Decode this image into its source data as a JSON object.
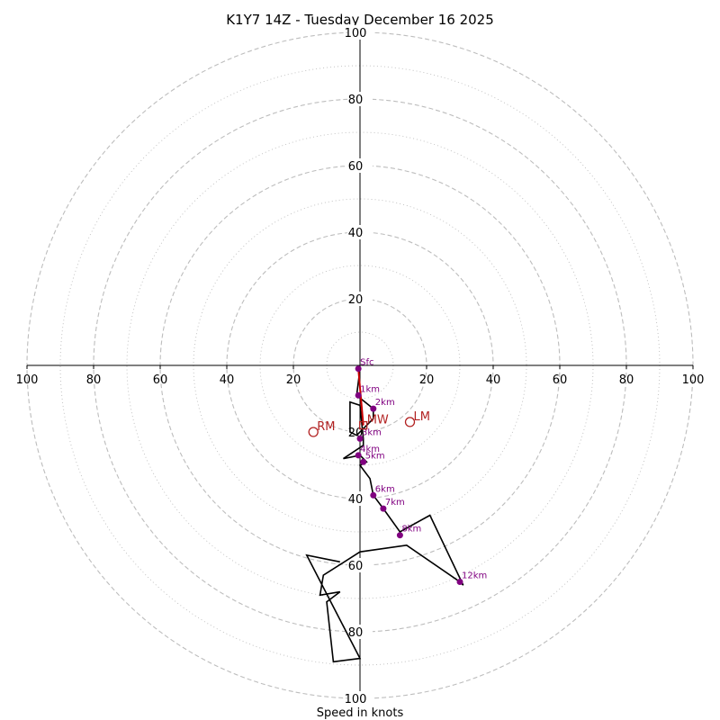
{
  "chart_data": {
    "type": "hodograph",
    "title": "K1Y7 14Z - Tuesday December 16 2025",
    "xlabel": "Speed in knots",
    "max_speed": 100,
    "ring_labels": [
      "20",
      "40",
      "60",
      "80",
      "100"
    ],
    "h_tick_labels": [
      "100",
      "80",
      "60",
      "40",
      "20",
      "20",
      "40",
      "60",
      "80",
      "100"
    ],
    "v_tick_labels": [
      "100",
      "80",
      "60",
      "40",
      "20",
      "20",
      "40",
      "60",
      "80",
      "100"
    ],
    "colors": {
      "grid": "#bdbdbd",
      "trace": "#000000",
      "height_marker": "#800080",
      "motion": "#b22222",
      "shear_vector": "#cc0000"
    },
    "trace": [
      {
        "u": 0,
        "v": -1
      },
      {
        "u": -1,
        "v": -9
      },
      {
        "u": 4,
        "v": -13
      },
      {
        "u": 4,
        "v": -16
      },
      {
        "u": -1,
        "v": -21
      },
      {
        "u": -3,
        "v": -20
      },
      {
        "u": -3,
        "v": -11
      },
      {
        "u": 0,
        "v": -12
      },
      {
        "u": 1,
        "v": -22
      },
      {
        "u": 1,
        "v": -24
      },
      {
        "u": -5,
        "v": -28
      },
      {
        "u": 0,
        "v": -27
      },
      {
        "u": 2,
        "v": -29
      },
      {
        "u": 0,
        "v": -30
      },
      {
        "u": 3,
        "v": -34
      },
      {
        "u": 4,
        "v": -39
      },
      {
        "u": 7,
        "v": -43
      },
      {
        "u": 12,
        "v": -50
      },
      {
        "u": 21,
        "v": -45
      },
      {
        "u": 31,
        "v": -66
      },
      {
        "u": 30,
        "v": -65
      },
      {
        "u": 14,
        "v": -54
      },
      {
        "u": 0,
        "v": -56
      },
      {
        "u": -11,
        "v": -63
      },
      {
        "u": -12,
        "v": -69
      },
      {
        "u": -6,
        "v": -68
      },
      {
        "u": -10,
        "v": -71
      },
      {
        "u": -8,
        "v": -89
      },
      {
        "u": 0,
        "v": -88
      },
      {
        "u": -16,
        "v": -57
      },
      {
        "u": -6,
        "v": -59
      }
    ],
    "height_markers": [
      {
        "label": "Sfc",
        "u": -0.5,
        "v": -1
      },
      {
        "label": "1km",
        "u": -0.5,
        "v": -9
      },
      {
        "label": "2km",
        "u": 4,
        "v": -13
      },
      {
        "label": "3km",
        "u": 0,
        "v": -22
      },
      {
        "label": "4km",
        "u": -0.5,
        "v": -27
      },
      {
        "label": "5km",
        "u": 1,
        "v": -29
      },
      {
        "label": "6km",
        "u": 4,
        "v": -39
      },
      {
        "label": "7km",
        "u": 7,
        "v": -43
      },
      {
        "label": "8km",
        "u": 12,
        "v": -51
      },
      {
        "label": "12km",
        "u": 30,
        "v": -65
      }
    ],
    "storm_motions": [
      {
        "label": "RM",
        "u": -14,
        "v": -20
      },
      {
        "label": "LM",
        "u": 15,
        "v": -17
      },
      {
        "label": "MW",
        "u": 1,
        "v": -18
      }
    ],
    "shear_vector": {
      "from": {
        "u": -0.5,
        "v": -1
      },
      "to": {
        "u": 1,
        "v": -18
      }
    }
  }
}
